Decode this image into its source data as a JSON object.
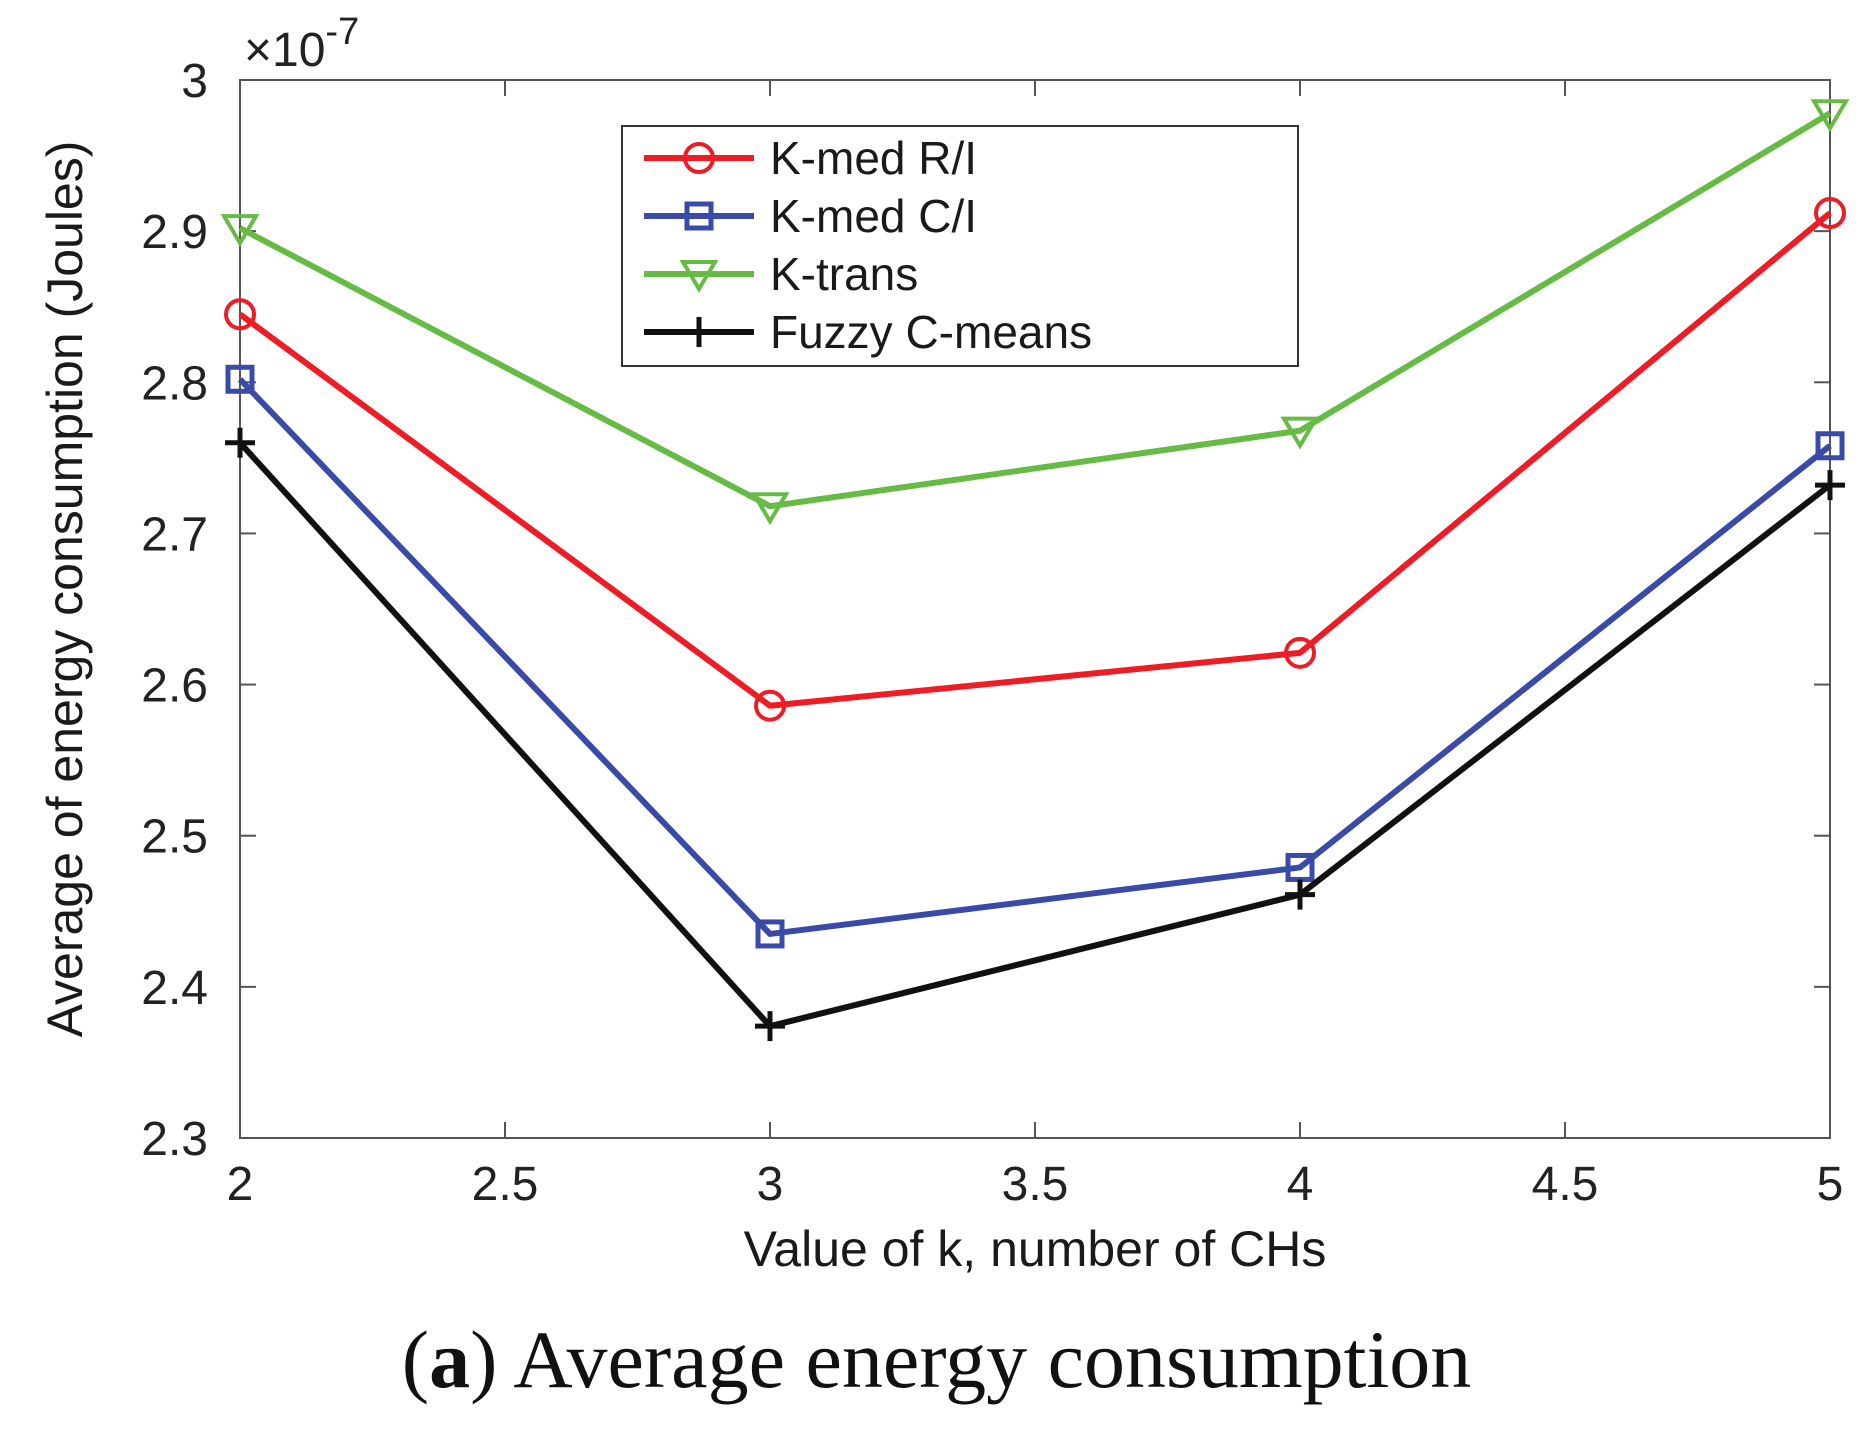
{
  "chart_data": {
    "type": "line",
    "title": "",
    "xlabel": "Value of k, number of CHs",
    "ylabel": "Average of energy consumption (Joules)",
    "y_exponent_label": "×10",
    "y_exponent_power": "-7",
    "xlim": [
      2,
      5
    ],
    "ylim": [
      2.3,
      3.0
    ],
    "x_ticks": [
      2,
      2.5,
      3,
      3.5,
      4,
      4.5,
      5
    ],
    "x_tick_labels": [
      "2",
      "2.5",
      "3",
      "3.5",
      "4",
      "4.5",
      "5"
    ],
    "y_ticks": [
      2.3,
      2.4,
      2.5,
      2.6,
      2.7,
      2.8,
      2.9,
      3.0
    ],
    "y_tick_labels": [
      "2.3",
      "2.4",
      "2.5",
      "2.6",
      "2.7",
      "2.8",
      "2.9",
      "3"
    ],
    "grid": false,
    "legend_position": "top-center",
    "x": [
      2,
      3,
      4,
      5
    ],
    "series": [
      {
        "name": "K-med R/I",
        "color": "#ee1c24",
        "marker": "circle",
        "values": [
          2.845,
          2.586,
          2.621,
          2.912
        ]
      },
      {
        "name": "K-med C/I",
        "color": "#3a4aa8",
        "marker": "square",
        "values": [
          2.802,
          2.435,
          2.479,
          2.758
        ]
      },
      {
        "name": "K-trans",
        "color": "#66bb44",
        "marker": "triangle-down",
        "values": [
          2.902,
          2.718,
          2.768,
          2.978
        ]
      },
      {
        "name": "Fuzzy C-means",
        "color": "#111111",
        "marker": "plus",
        "values": [
          2.76,
          2.374,
          2.461,
          2.732
        ]
      }
    ]
  },
  "caption": {
    "open_paren": "(",
    "label": "a",
    "close_paren": ")",
    "text": " Average energy consumption"
  }
}
